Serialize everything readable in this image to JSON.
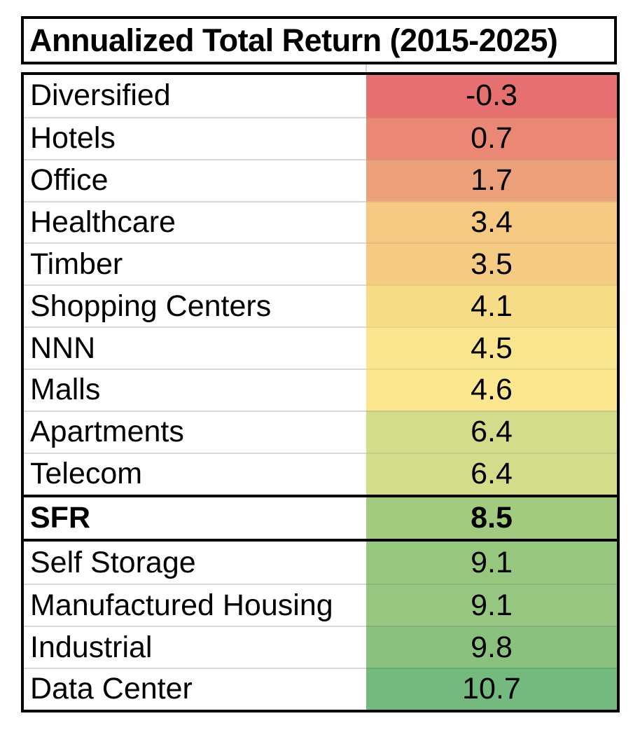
{
  "title": "Annualized Total Return (2015-2025)",
  "colors": {
    "border": "#000000",
    "row_separator": "#d8d8d8",
    "background": "#ffffff",
    "text": "#000000"
  },
  "chart_data": {
    "type": "table",
    "title": "Annualized Total Return (2015-2025)",
    "color_scale": "red-yellow-green heatmap on value column",
    "value_min": -0.3,
    "value_max": 10.7,
    "highlighted_row": "SFR",
    "rows": [
      {
        "label": "Diversified",
        "value": "-0.3",
        "color": "#E66F70",
        "bold": false
      },
      {
        "label": "Hotels",
        "value": "0.7",
        "color": "#EA8875",
        "bold": false
      },
      {
        "label": "Office",
        "value": "1.7",
        "color": "#EC9F7B",
        "bold": false
      },
      {
        "label": "Healthcare",
        "value": "3.4",
        "color": "#F5C981",
        "bold": false
      },
      {
        "label": "Timber",
        "value": "3.5",
        "color": "#F5CB83",
        "bold": false
      },
      {
        "label": "Shopping Centers",
        "value": "4.1",
        "color": "#F7DC88",
        "bold": false
      },
      {
        "label": "NNN",
        "value": "4.5",
        "color": "#F9E58D",
        "bold": false
      },
      {
        "label": "Malls",
        "value": "4.6",
        "color": "#FAE78F",
        "bold": false
      },
      {
        "label": "Apartments",
        "value": "6.4",
        "color": "#D2DC8B",
        "bold": false
      },
      {
        "label": "Telecom",
        "value": "6.4",
        "color": "#D2DC8B",
        "bold": false
      },
      {
        "label": "SFR",
        "value": "8.5",
        "color": "#A2CB80",
        "bold": true
      },
      {
        "label": "Self Storage",
        "value": "9.1",
        "color": "#97C67F",
        "bold": false
      },
      {
        "label": "Manufactured Housing",
        "value": "9.1",
        "color": "#96C67F",
        "bold": false
      },
      {
        "label": "Industrial",
        "value": "9.8",
        "color": "#8BC17F",
        "bold": false
      },
      {
        "label": "Data Center",
        "value": "10.7",
        "color": "#74B97E",
        "bold": false
      }
    ]
  }
}
